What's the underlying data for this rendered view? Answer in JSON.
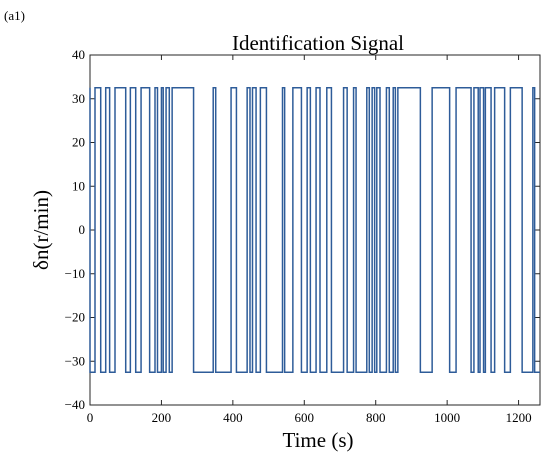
{
  "panel_label": "(a1)",
  "chart_data": {
    "type": "line",
    "title": "Identification Signal",
    "xlabel": "Time (s)",
    "ylabel": "δn(r/min)",
    "xlim": [
      0,
      1260
    ],
    "ylim": [
      -40,
      40
    ],
    "x_ticks": [
      0,
      200,
      400,
      600,
      800,
      1000,
      1200
    ],
    "y_ticks": [
      40,
      30,
      20,
      10,
      0,
      -10,
      -20,
      -30,
      -40
    ],
    "x_tick_labels": [
      "0",
      "200",
      "400",
      "600",
      "800",
      "1000",
      "1200"
    ],
    "y_tick_labels": [
      "40",
      "30",
      "20",
      "10",
      "0",
      "−10",
      "−20",
      "−30",
      "−40"
    ],
    "grid": false,
    "line_color": "#2e5c99",
    "series": [
      {
        "type": "step",
        "amplitude": 32.5,
        "initial_level": 32.5,
        "switch_times": [
          0,
          14,
          30,
          44,
          55,
          70,
          100,
          113,
          128,
          143,
          167,
          182,
          189,
          200,
          205,
          213,
          222,
          230,
          290,
          345,
          352,
          395,
          410,
          440,
          448,
          455,
          465,
          477,
          494,
          539,
          545,
          568,
          592,
          608,
          617,
          633,
          644,
          663,
          676,
          710,
          720,
          738,
          745,
          775,
          782,
          790,
          797,
          803,
          812,
          830,
          838,
          849,
          855,
          862,
          925,
          958,
          1007,
          1025,
          1067,
          1075,
          1087,
          1092,
          1102,
          1107,
          1123,
          1133,
          1161,
          1177,
          1210,
          1240,
          1245
        ],
        "values": [
          -32.5,
          32.5,
          -32.5,
          32.5,
          -32.5,
          32.5,
          -32.5,
          32.5,
          -32.5,
          32.5,
          -32.5,
          32.5,
          -32.5,
          32.5,
          -32.5,
          32.5,
          -32.5,
          32.5,
          -32.5,
          32.5,
          -32.5,
          32.5,
          -32.5,
          32.5,
          -32.5,
          32.5,
          -32.5,
          32.5,
          -32.5,
          32.5,
          -32.5,
          32.5,
          -32.5,
          32.5,
          -32.5,
          32.5,
          -32.5,
          32.5,
          -32.5,
          32.5,
          -32.5,
          32.5,
          -32.5,
          32.5,
          -32.5,
          32.5,
          -32.5,
          32.5,
          -32.5,
          32.5,
          -32.5,
          32.5,
          -32.5,
          32.5,
          -32.5,
          32.5,
          -32.5,
          32.5,
          -32.5,
          32.5,
          -32.5,
          32.5,
          -32.5,
          32.5,
          -32.5,
          32.5,
          -32.5,
          32.5,
          -32.5,
          32.5,
          -32.5
        ]
      }
    ]
  }
}
